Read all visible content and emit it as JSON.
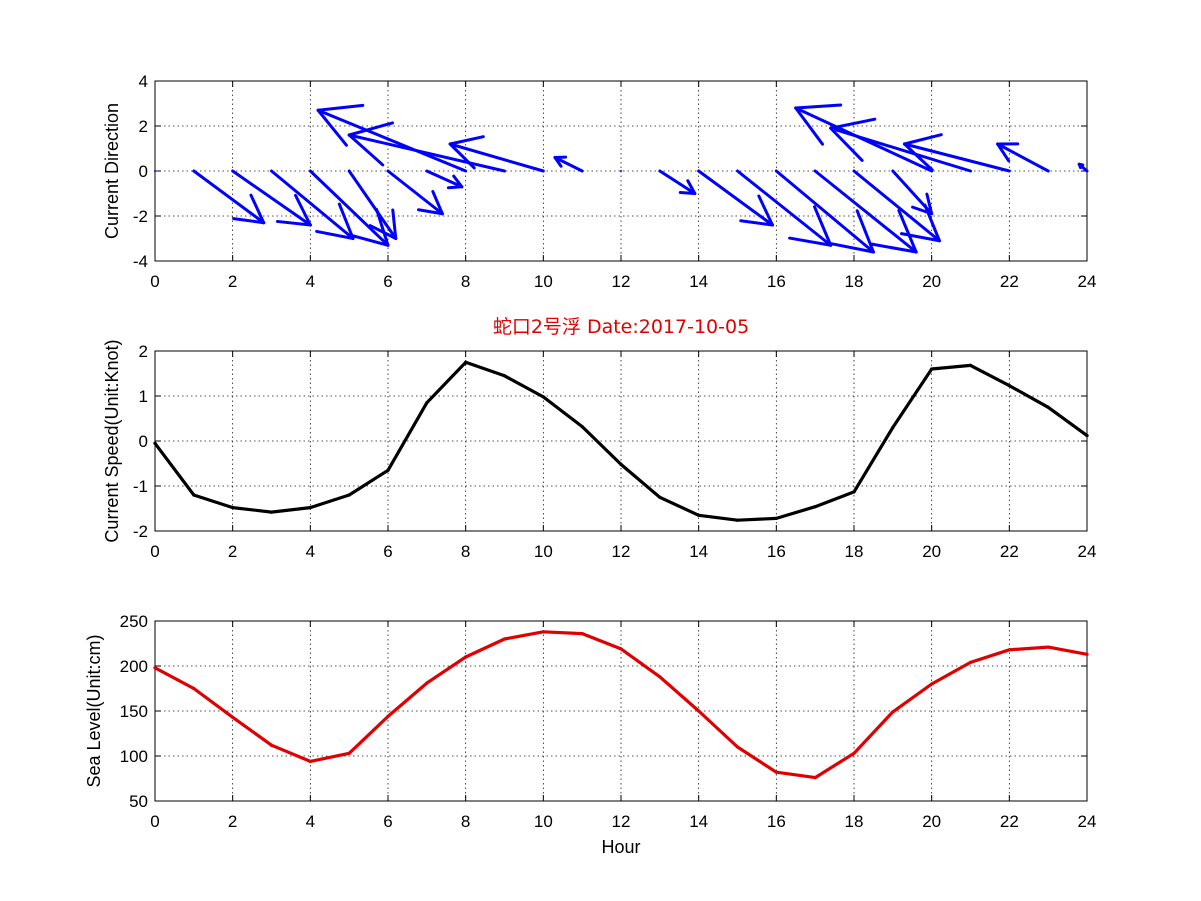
{
  "title": "蛇口2号浮   Date:2017-10-05",
  "title_color": "#e00000",
  "chart_data": [
    {
      "type": "quiver",
      "xlabel": "",
      "ylabel": "Current Direction",
      "xlim": [
        0,
        24
      ],
      "ylim": [
        -4,
        4
      ],
      "xticks": [
        0,
        2,
        4,
        6,
        8,
        10,
        12,
        14,
        16,
        18,
        20,
        22,
        24
      ],
      "yticks": [
        -4,
        -2,
        0,
        2,
        4
      ],
      "grid": true,
      "color": "#0000ff",
      "x": [
        0,
        1,
        2,
        3,
        4,
        5,
        6,
        7,
        8,
        9,
        10,
        11,
        12,
        13,
        14,
        15,
        16,
        17,
        18,
        19,
        20,
        21,
        22,
        23,
        24
      ],
      "u": [
        0,
        1.8,
        2.0,
        2.1,
        2.0,
        1.2,
        1.4,
        0.9,
        -3.8,
        -4.0,
        -2.4,
        -0.7,
        0,
        0.9,
        1.9,
        2.4,
        2.5,
        2.6,
        2.2,
        1.0,
        -3.5,
        -3.6,
        -2.7,
        -1.3,
        -0.2
      ],
      "v": [
        0,
        -2.3,
        -2.4,
        -3.0,
        -3.3,
        -3.0,
        -1.9,
        -0.7,
        2.7,
        1.6,
        1.2,
        0.6,
        0,
        -1.0,
        -2.4,
        -3.3,
        -3.6,
        -3.6,
        -3.1,
        -1.9,
        2.8,
        1.9,
        1.2,
        1.2,
        0.3
      ]
    },
    {
      "type": "line",
      "xlabel": "",
      "ylabel": "Current Speed(Unit:Knot)",
      "xlim": [
        0,
        24
      ],
      "ylim": [
        -2,
        2
      ],
      "xticks": [
        0,
        2,
        4,
        6,
        8,
        10,
        12,
        14,
        16,
        18,
        20,
        22,
        24
      ],
      "yticks": [
        -2,
        -1,
        0,
        1,
        2
      ],
      "grid": true,
      "color": "#000000",
      "x": [
        0,
        1,
        2,
        3,
        4,
        5,
        6,
        7,
        8,
        9,
        10,
        11,
        12,
        13,
        14,
        15,
        16,
        17,
        18,
        19,
        20,
        21,
        22,
        23,
        24
      ],
      "y": [
        -0.05,
        -1.2,
        -1.48,
        -1.58,
        -1.48,
        -1.2,
        -0.65,
        0.85,
        1.75,
        1.45,
        0.98,
        0.32,
        -0.52,
        -1.25,
        -1.65,
        -1.76,
        -1.72,
        -1.46,
        -1.13,
        0.3,
        1.6,
        1.68,
        1.23,
        0.75,
        0.12
      ]
    },
    {
      "type": "line",
      "xlabel": "Hour",
      "ylabel": "Sea Level(Unit:cm)",
      "xlim": [
        0,
        24
      ],
      "ylim": [
        50,
        250
      ],
      "xticks": [
        0,
        2,
        4,
        6,
        8,
        10,
        12,
        14,
        16,
        18,
        20,
        22,
        24
      ],
      "yticks": [
        50,
        100,
        150,
        200,
        250
      ],
      "grid": true,
      "color": "#e00000",
      "x": [
        0,
        1,
        2,
        3,
        4,
        5,
        6,
        7,
        8,
        9,
        10,
        11,
        12,
        13,
        14,
        15,
        16,
        17,
        18,
        19,
        20,
        21,
        22,
        23,
        24
      ],
      "y": [
        198,
        175,
        143,
        112,
        94,
        103,
        144,
        181,
        210,
        230,
        238,
        236,
        219,
        188,
        150,
        110,
        82,
        76,
        103,
        149,
        180,
        204,
        218,
        221,
        213
      ]
    }
  ]
}
